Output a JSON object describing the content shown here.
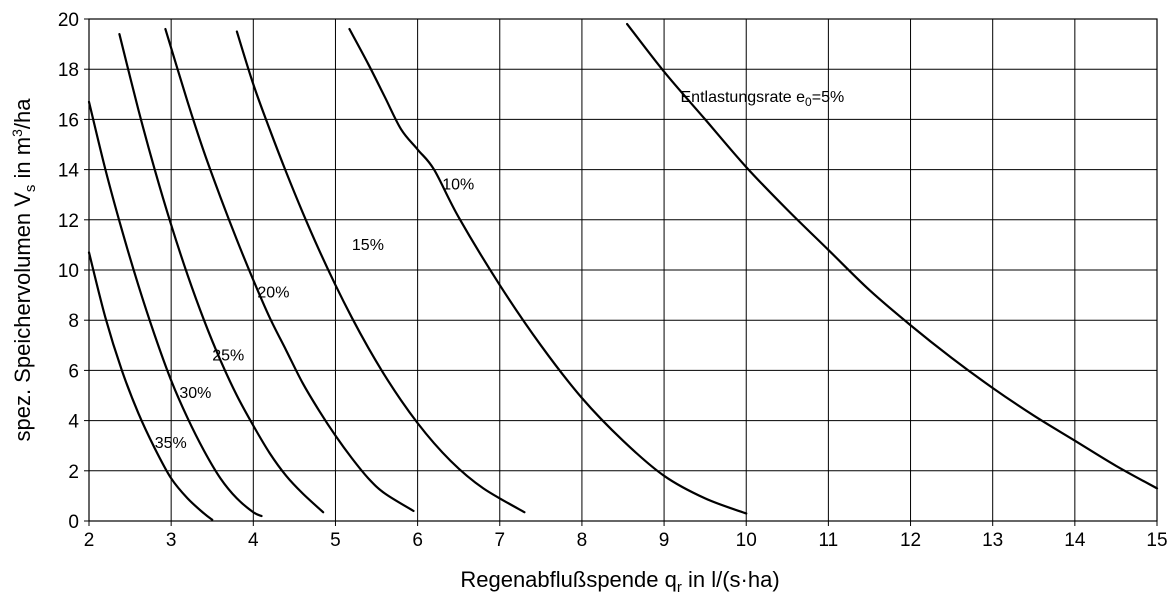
{
  "chart_data": {
    "type": "line",
    "xlabel": {
      "main": "Regenabflußspende q",
      "sub": "r",
      "tail": " in l/(s·ha)"
    },
    "ylabel": {
      "main": "spez. Speichervolumen V",
      "sub": "s",
      "mid": " in m",
      "sup": "3",
      "tail": "/ha"
    },
    "xlim": [
      2,
      15
    ],
    "ylim": [
      0,
      20
    ],
    "x_ticks": [
      2,
      3,
      4,
      5,
      6,
      7,
      8,
      9,
      10,
      11,
      12,
      13,
      14,
      15
    ],
    "y_ticks": [
      0,
      2,
      4,
      6,
      8,
      10,
      12,
      14,
      16,
      18,
      20
    ],
    "grid": true,
    "legend": "none",
    "series": [
      {
        "label": {
          "text": "35%",
          "x": 2.8,
          "y": 2.9
        },
        "points": [
          [
            2.0,
            10.7
          ],
          [
            2.2,
            8.1
          ],
          [
            2.4,
            6.0
          ],
          [
            2.6,
            4.3
          ],
          [
            2.8,
            2.9
          ],
          [
            3.0,
            1.7
          ],
          [
            3.2,
            0.9
          ],
          [
            3.4,
            0.3
          ],
          [
            3.5,
            0.05
          ]
        ]
      },
      {
        "label": {
          "text": "30%",
          "x": 3.1,
          "y": 4.9
        },
        "points": [
          [
            2.0,
            16.7
          ],
          [
            2.2,
            14.0
          ],
          [
            2.4,
            11.6
          ],
          [
            2.6,
            9.4
          ],
          [
            2.8,
            7.4
          ],
          [
            3.0,
            5.6
          ],
          [
            3.2,
            4.1
          ],
          [
            3.4,
            2.8
          ],
          [
            3.6,
            1.7
          ],
          [
            3.8,
            0.9
          ],
          [
            4.0,
            0.35
          ],
          [
            4.1,
            0.2
          ]
        ]
      },
      {
        "label": {
          "text": "25%",
          "x": 3.5,
          "y": 6.4
        },
        "points": [
          [
            2.37,
            19.4
          ],
          [
            2.6,
            16.4
          ],
          [
            2.8,
            14.0
          ],
          [
            3.0,
            11.8
          ],
          [
            3.2,
            9.8
          ],
          [
            3.4,
            8.0
          ],
          [
            3.6,
            6.4
          ],
          [
            3.8,
            5.0
          ],
          [
            4.0,
            3.8
          ],
          [
            4.2,
            2.7
          ],
          [
            4.4,
            1.8
          ],
          [
            4.6,
            1.1
          ],
          [
            4.85,
            0.35
          ]
        ]
      },
      {
        "label": {
          "text": "20%",
          "x": 4.05,
          "y": 8.9
        },
        "points": [
          [
            2.93,
            19.6
          ],
          [
            3.2,
            16.7
          ],
          [
            3.4,
            14.7
          ],
          [
            3.6,
            12.9
          ],
          [
            3.8,
            11.2
          ],
          [
            4.0,
            9.6
          ],
          [
            4.2,
            8.1
          ],
          [
            4.4,
            6.8
          ],
          [
            4.6,
            5.5
          ],
          [
            4.8,
            4.4
          ],
          [
            5.0,
            3.4
          ],
          [
            5.2,
            2.5
          ],
          [
            5.4,
            1.7
          ],
          [
            5.6,
            1.1
          ],
          [
            5.95,
            0.4
          ]
        ]
      },
      {
        "label": {
          "text": "15%",
          "x": 5.2,
          "y": 10.8
        },
        "points": [
          [
            3.8,
            19.5
          ],
          [
            4.0,
            17.4
          ],
          [
            4.2,
            15.6
          ],
          [
            4.4,
            13.9
          ],
          [
            4.6,
            12.3
          ],
          [
            4.8,
            10.8
          ],
          [
            5.0,
            9.4
          ],
          [
            5.2,
            8.1
          ],
          [
            5.4,
            6.9
          ],
          [
            5.6,
            5.8
          ],
          [
            5.8,
            4.8
          ],
          [
            6.0,
            3.9
          ],
          [
            6.2,
            3.1
          ],
          [
            6.4,
            2.4
          ],
          [
            6.6,
            1.8
          ],
          [
            6.8,
            1.3
          ],
          [
            7.0,
            0.9
          ],
          [
            7.3,
            0.35
          ]
        ]
      },
      {
        "label": {
          "text": "10%",
          "x": 6.3,
          "y": 13.2
        },
        "points": [
          [
            5.17,
            19.6
          ],
          [
            5.4,
            18.2
          ],
          [
            5.6,
            16.9
          ],
          [
            5.8,
            15.6
          ],
          [
            6.0,
            14.8
          ],
          [
            6.2,
            14.0
          ],
          [
            6.5,
            12.1
          ],
          [
            7.0,
            9.4
          ],
          [
            7.5,
            7.0
          ],
          [
            8.0,
            4.9
          ],
          [
            8.5,
            3.2
          ],
          [
            9.0,
            1.8
          ],
          [
            9.5,
            0.9
          ],
          [
            10.0,
            0.3
          ]
        ]
      },
      {
        "label": {
          "text": "Entlastungsrate e",
          "sub": "0",
          "tail": "=5%",
          "x": 9.2,
          "y": 16.7
        },
        "points": [
          [
            8.55,
            19.8
          ],
          [
            9.0,
            17.9
          ],
          [
            9.5,
            16.0
          ],
          [
            10.0,
            14.1
          ],
          [
            10.5,
            12.4
          ],
          [
            11.0,
            10.8
          ],
          [
            11.5,
            9.2
          ],
          [
            12.0,
            7.8
          ],
          [
            12.5,
            6.5
          ],
          [
            13.0,
            5.3
          ],
          [
            13.5,
            4.2
          ],
          [
            14.0,
            3.2
          ],
          [
            14.5,
            2.2
          ],
          [
            15.0,
            1.3
          ]
        ]
      }
    ]
  }
}
